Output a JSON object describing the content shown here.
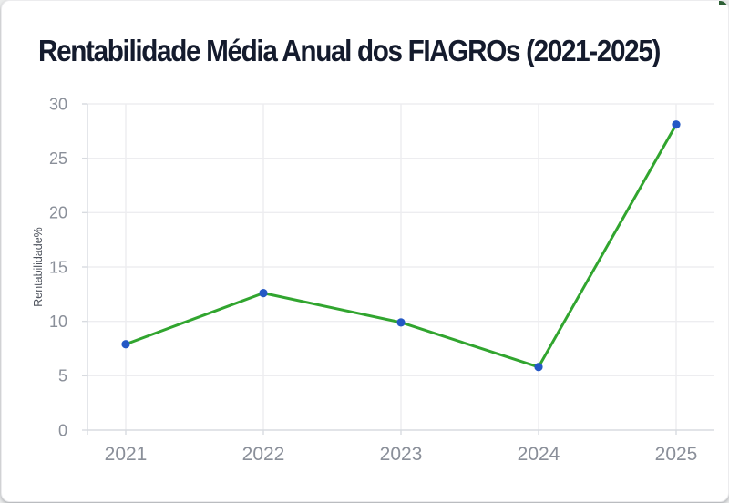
{
  "card": {
    "title": "Rentabilidade Média Anual dos FIAGROs (2021-2025)"
  },
  "colors": {
    "title": "#141b2d",
    "line": "#31a52f",
    "marker": "#2458c5",
    "grid": "#ededf0",
    "axis": "#d8dbe0",
    "tick_label": "#8a8f99",
    "axis_title": "#4f545e",
    "corner_artifact": "#2d5f35",
    "card_background": "#ffffff"
  },
  "chart_data": {
    "type": "line",
    "title": "Rentabilidade Média Anual dos FIAGROs (2021-2025)",
    "categories": [
      "2021",
      "2022",
      "2023",
      "2024",
      "2025"
    ],
    "series": [
      {
        "name": "Rentabilidade",
        "values": [
          7.9,
          12.6,
          9.9,
          5.8,
          28.1
        ]
      }
    ],
    "xlabel": "",
    "ylabel": "Rentabilidade%",
    "ylim": [
      0,
      30
    ],
    "yticks": [
      0,
      5,
      10,
      15,
      20,
      25,
      30
    ],
    "grid": true,
    "legend_position": "none"
  }
}
